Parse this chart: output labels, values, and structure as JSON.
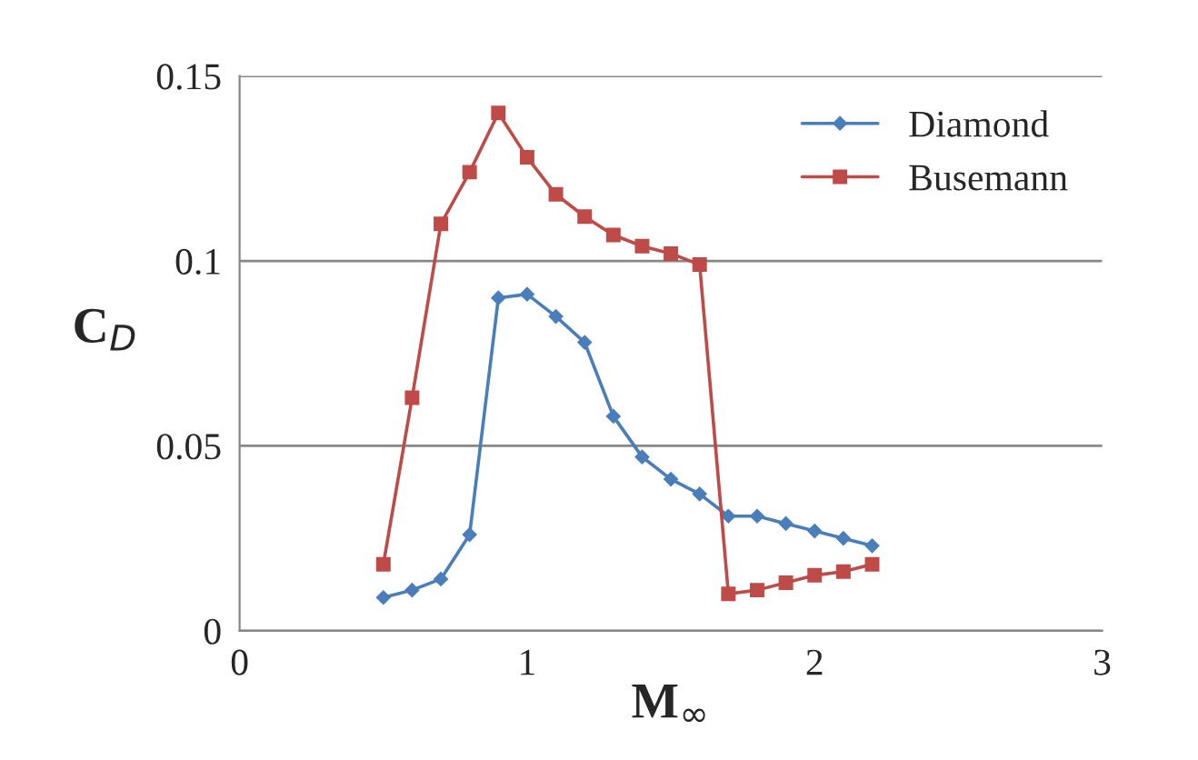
{
  "chart_data": {
    "type": "line",
    "xlabel": "M$_{∞}$",
    "ylabel": "C$_{D}$",
    "x": [
      0.5,
      0.6,
      0.7,
      0.8,
      0.9,
      1.0,
      1.1,
      1.2,
      1.3,
      1.4,
      1.5,
      1.6,
      1.7,
      1.8,
      1.9,
      2.0,
      2.1,
      2.2
    ],
    "series": [
      {
        "name": "Diamond",
        "color": "#4a7ebb",
        "marker": "diamond",
        "values": [
          0.009,
          0.011,
          0.014,
          0.026,
          0.09,
          0.091,
          0.085,
          0.078,
          0.058,
          0.047,
          0.041,
          0.037,
          0.031,
          0.031,
          0.029,
          0.027,
          0.025,
          0.023
        ]
      },
      {
        "name": "Busemann",
        "color": "#be4b48",
        "marker": "square",
        "values": [
          0.018,
          0.063,
          0.11,
          0.124,
          0.14,
          0.128,
          0.118,
          0.112,
          0.107,
          0.104,
          0.102,
          0.099,
          0.01,
          0.011,
          0.013,
          0.015,
          0.016,
          0.018
        ]
      }
    ],
    "xlim": [
      0,
      3
    ],
    "xticks": [
      0,
      1,
      2,
      3
    ],
    "ylim": [
      0,
      0.15
    ],
    "yticks": [
      0,
      0.05,
      0.1,
      0.15
    ],
    "grid": "y",
    "legend": "top right",
    "line_style": "solid"
  }
}
